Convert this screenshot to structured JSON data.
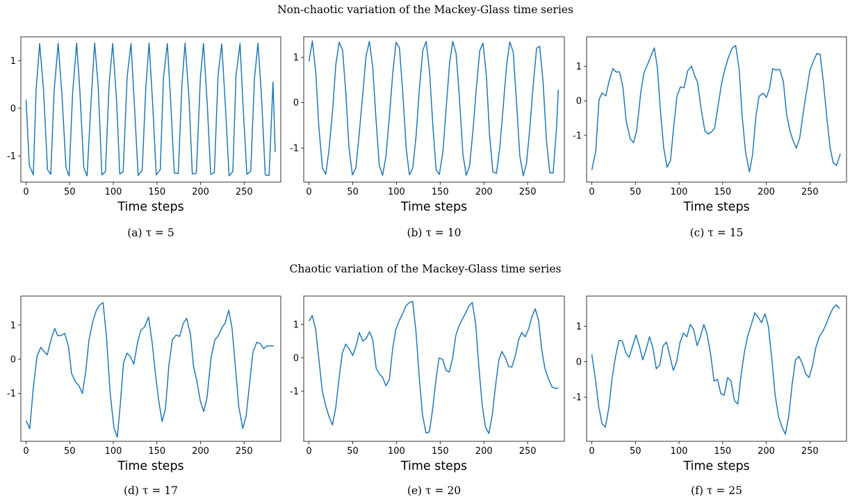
{
  "rows": [
    {
      "title": "Non-chaotic variation of the Mackey-Glass time series"
    },
    {
      "title": "Chaotic variation of the Mackey-Glass time series"
    }
  ],
  "line_color": "#1f77b4",
  "chart_data": [
    {
      "type": "line",
      "caption": "(a) τ = 5",
      "xlabel": "Time steps",
      "ylabel": "",
      "xlim": [
        -6,
        292
      ],
      "ylim": [
        -1.55,
        1.5
      ],
      "xticks": [
        0,
        50,
        100,
        150,
        200,
        250
      ],
      "yticks": [
        -1,
        0,
        1
      ],
      "ytick_labels": [
        "-1",
        "0",
        "1"
      ],
      "x": [
        0,
        3.7,
        8.3,
        11.5,
        15.6,
        20,
        24.6,
        28.3,
        32.2,
        36.8,
        41,
        45.8,
        49.3,
        53.4,
        58,
        61.6,
        66.2,
        69.9,
        74.5,
        78.6,
        82.7,
        86.9,
        91,
        95.2,
        99.3,
        103.9,
        107.4,
        111.3,
        115.9,
        120.3,
        124.2,
        128.5,
        133.1,
        137.3,
        141,
        145.1,
        149.2,
        153.8,
        157.5,
        162,
        165.8,
        169.9,
        174.5,
        178.6,
        182.3,
        186.9,
        190.6,
        195.2,
        199.8,
        203.4,
        207.6,
        211.7,
        215.8,
        220.1,
        224.3,
        228.6,
        232.7,
        237,
        240.7,
        245.3,
        248.5,
        253.1,
        257.6,
        261.8,
        265.9,
        270,
        274.2,
        278.6,
        283.1,
        285.6
      ],
      "y": [
        0.18,
        -1.2,
        -1.4,
        0.4,
        1.36,
        0.39,
        -1.29,
        -1.39,
        0.37,
        1.36,
        0.31,
        -1.25,
        -1.42,
        0.32,
        1.37,
        0.39,
        -1.25,
        -1.42,
        0.14,
        1.37,
        0.46,
        -1.4,
        -1.33,
        0.51,
        1.36,
        0.12,
        -1.38,
        -1.33,
        0.67,
        1.36,
        0.06,
        -1.41,
        -1.3,
        0.43,
        1.37,
        0.11,
        -1.4,
        -1.29,
        0.64,
        1.36,
        0.13,
        -1.36,
        -1.37,
        0.48,
        1.37,
        0.17,
        -1.38,
        -1.36,
        0.63,
        1.36,
        0.11,
        -1.39,
        -1.35,
        0.7,
        1.35,
        0.03,
        -1.42,
        -1.33,
        0.69,
        1.36,
        0.14,
        -1.39,
        -1.32,
        0.62,
        1.37,
        0.21,
        -1.4,
        -1.41,
        0.55,
        -0.92
      ]
    },
    {
      "type": "line",
      "caption": "(b) τ = 10",
      "xlabel": "Time steps",
      "ylabel": "",
      "xlim": [
        -6,
        292
      ],
      "ylim": [
        -1.75,
        1.45
      ],
      "xticks": [
        0,
        50,
        100,
        150,
        200,
        250
      ],
      "yticks": [
        -1,
        0,
        1
      ],
      "ytick_labels": [
        "-1",
        "0",
        "1"
      ],
      "x": [
        0,
        3.9,
        7.8,
        11.3,
        15.5,
        19.2,
        22.9,
        27.1,
        30.6,
        34.5,
        38.4,
        42.2,
        45.8,
        49.7,
        53.6,
        57.3,
        61.4,
        65.3,
        69.1,
        72.8,
        76.6,
        80.4,
        84.2,
        88.1,
        92,
        95.8,
        99.5,
        103.4,
        107.3,
        111.2,
        114.9,
        118.7,
        122.5,
        126.4,
        130.1,
        134,
        137.9,
        141.7,
        145.4,
        149.1,
        153.2,
        157,
        160.7,
        164.4,
        168.3,
        172.1,
        176,
        179.8,
        183.6,
        187.5,
        191.3,
        195.2,
        199,
        202.9,
        206.5,
        210.3,
        214.4,
        218.2,
        221.9,
        226,
        229.6,
        233.6,
        237.3,
        241.1,
        245,
        248.7,
        252.4,
        256.3,
        260.3,
        263.9,
        267.7,
        271.6,
        275.4,
        279.2,
        283.1,
        285.2
      ],
      "y": [
        0.91,
        1.36,
        0.66,
        -0.55,
        -1.45,
        -1.58,
        -1.03,
        -0.15,
        0.83,
        1.33,
        1.16,
        0.19,
        -1.01,
        -1.59,
        -1.44,
        -0.71,
        0.16,
        1.03,
        1.35,
        0.8,
        -0.34,
        -1.38,
        -1.6,
        -1.17,
        -0.3,
        0.65,
        1.33,
        1.21,
        0.2,
        -1.02,
        -1.59,
        -1.44,
        -0.73,
        0.34,
        1.15,
        1.35,
        0.67,
        -0.53,
        -1.48,
        -1.58,
        -1.08,
        -0.1,
        0.86,
        1.35,
        1.08,
        0.09,
        -1.13,
        -1.6,
        -1.4,
        -0.62,
        0.31,
        1.14,
        1.31,
        0.58,
        -0.72,
        -1.52,
        -1.56,
        -0.99,
        -0.13,
        0.82,
        1.34,
        1.11,
        0.01,
        -1.17,
        -1.61,
        -1.34,
        -0.59,
        0.37,
        1.2,
        1.24,
        0.45,
        -0.84,
        -1.55,
        -1.55,
        -0.54,
        0.29
      ]
    },
    {
      "type": "line",
      "caption": "(c) τ = 15",
      "xlabel": "Time steps",
      "ylabel": "",
      "xlim": [
        -6,
        292
      ],
      "ylim": [
        -2.35,
        1.85
      ],
      "xticks": [
        0,
        50,
        100,
        150,
        200,
        250
      ],
      "yticks": [
        -1,
        0,
        1
      ],
      "ytick_labels": [
        "-1",
        "0",
        "1"
      ],
      "x": [
        0,
        4.4,
        8.3,
        11.7,
        16.1,
        20,
        24.2,
        28.1,
        31.8,
        35.7,
        39.3,
        43.9,
        47.8,
        51.4,
        56.2,
        59.8,
        63.9,
        67.8,
        71.7,
        75.1,
        78.5,
        82.4,
        86.3,
        90.2,
        93.8,
        97.7,
        101.6,
        105.7,
        109.9,
        114.2,
        117.9,
        121.3,
        125.2,
        129.6,
        133.3,
        137.2,
        140.8,
        144.7,
        148.9,
        152.5,
        156.4,
        160.8,
        164.9,
        168.8,
        172.5,
        176.4,
        180.7,
        184.2,
        188.1,
        191.8,
        196.4,
        200.1,
        203.7,
        207.3,
        211,
        215.4,
        219.6,
        223.2,
        227.1,
        230.5,
        234.4,
        238.3,
        242.2,
        245.6,
        250,
        253.4,
        258,
        261.7,
        265.6,
        269.5,
        273.2,
        276.6,
        280.5,
        284.9
      ],
      "y": [
        -2.0,
        -1.47,
        0.03,
        0.23,
        0.14,
        0.59,
        0.93,
        0.83,
        0.84,
        0.39,
        -0.57,
        -1.09,
        -1.21,
        -0.87,
        0.26,
        0.81,
        1.05,
        1.3,
        1.53,
        0.96,
        -0.24,
        -1.35,
        -1.92,
        -1.73,
        -0.76,
        0.14,
        0.4,
        0.38,
        0.87,
        1.0,
        0.73,
        0.52,
        -0.23,
        -0.87,
        -0.96,
        -0.9,
        -0.79,
        -0.15,
        0.52,
        0.91,
        1.24,
        1.52,
        1.6,
        0.94,
        -0.48,
        -1.51,
        -2.06,
        -1.57,
        -0.46,
        0.13,
        0.22,
        0.1,
        0.36,
        0.93,
        0.89,
        0.91,
        0.56,
        -0.38,
        -0.86,
        -1.13,
        -1.37,
        -1.08,
        -0.37,
        0.18,
        0.88,
        1.11,
        1.37,
        1.34,
        0.51,
        -0.51,
        -1.36,
        -1.78,
        -1.87,
        -1.53
      ]
    },
    {
      "type": "line",
      "caption": "(d) τ = 17",
      "xlabel": "Time steps",
      "ylabel": "",
      "xlim": [
        -6,
        292
      ],
      "ylim": [
        -2.4,
        1.85
      ],
      "xticks": [
        0,
        50,
        100,
        150,
        200,
        250
      ],
      "yticks": [
        -1,
        0,
        1
      ],
      "ytick_labels": [
        "-1",
        "0",
        "1"
      ],
      "x": [
        0,
        4.2,
        8.1,
        12.5,
        16.9,
        20.6,
        24.3,
        28.7,
        32.8,
        36.3,
        40.4,
        44.3,
        48.5,
        52.2,
        56.6,
        60.7,
        64.6,
        68.3,
        72.2,
        76.6,
        80.5,
        84.1,
        88.3,
        92.2,
        96.3,
        100.7,
        104.6,
        108.3,
        111.8,
        115.7,
        119.6,
        123.5,
        128.1,
        131.8,
        135.9,
        140.4,
        144.5,
        148.1,
        151.8,
        155.9,
        159.8,
        163.7,
        167.8,
        172,
        176.1,
        180.2,
        184.1,
        188.5,
        191.9,
        195.8,
        199.7,
        203.6,
        207.5,
        212.1,
        216.5,
        220.1,
        224.1,
        228.4,
        232.3,
        236.2,
        240.3,
        243.8,
        248.4,
        252.3,
        256,
        260.1,
        264.5,
        268.6,
        272.3,
        276.2,
        279.6,
        284
      ],
      "y": [
        -1.79,
        -2.03,
        -0.88,
        0.08,
        0.35,
        0.23,
        0.13,
        0.58,
        0.9,
        0.69,
        0.7,
        0.76,
        0.39,
        -0.42,
        -0.66,
        -0.78,
        -1.0,
        -0.38,
        0.58,
        1.12,
        1.43,
        1.58,
        1.66,
        0.66,
        -0.97,
        -2.0,
        -2.28,
        -1.22,
        -0.09,
        0.18,
        0.08,
        -0.14,
        0.53,
        0.86,
        0.95,
        1.24,
        0.49,
        -0.38,
        -1.16,
        -1.82,
        -1.44,
        -0.18,
        0.58,
        0.71,
        0.67,
        1.05,
        1.2,
        0.72,
        -0.2,
        -0.64,
        -1.22,
        -1.53,
        -1.12,
        0.05,
        0.57,
        0.68,
        0.9,
        1.07,
        1.44,
        0.89,
        -0.32,
        -1.38,
        -2.02,
        -1.66,
        -0.76,
        0.21,
        0.5,
        0.46,
        0.31,
        0.39,
        0.39,
        0.39
      ]
    },
    {
      "type": "line",
      "caption": "(e) τ = 20",
      "xlabel": "Time steps",
      "ylabel": "",
      "xlim": [
        -6,
        292
      ],
      "ylim": [
        -2.5,
        1.85
      ],
      "xticks": [
        0,
        50,
        100,
        150,
        200,
        250
      ],
      "yticks": [
        -1,
        0,
        1
      ],
      "ytick_labels": [
        "-1",
        "0",
        "1"
      ],
      "x": [
        0,
        3.8,
        7.7,
        11.5,
        15.2,
        19.2,
        23.1,
        26.8,
        30.6,
        34.5,
        38.1,
        42,
        45.9,
        50,
        53.7,
        57.6,
        61.5,
        65.4,
        69.3,
        72.9,
        76.8,
        80.4,
        84.3,
        88.1,
        92,
        95.7,
        99.4,
        103.5,
        107,
        110.9,
        114.6,
        118.5,
        122.4,
        126.2,
        129.9,
        133.8,
        137.7,
        141.4,
        145.3,
        148.7,
        152.9,
        156.7,
        160.4,
        164.3,
        167.8,
        171.6,
        175.3,
        179.1,
        183,
        186.7,
        190.6,
        194.4,
        198.1,
        201.8,
        205.7,
        209.4,
        213.2,
        217.1,
        220.6,
        224.6,
        228.3,
        232,
        236.2,
        239.6,
        243.3,
        247.2,
        251.1,
        254.8,
        258.7,
        262.5,
        266.2,
        269.9,
        274,
        277.9,
        281.8,
        285
      ],
      "y": [
        1.1,
        1.27,
        0.85,
        -0.08,
        -0.99,
        -1.44,
        -1.77,
        -2.01,
        -1.49,
        -0.58,
        0.14,
        0.41,
        0.27,
        0.07,
        0.34,
        0.76,
        0.5,
        0.58,
        0.78,
        0.54,
        -0.31,
        -0.48,
        -0.59,
        -0.84,
        -0.64,
        0.28,
        0.86,
        1.13,
        1.31,
        1.56,
        1.65,
        1.69,
        0.77,
        -0.63,
        -1.72,
        -2.25,
        -2.22,
        -1.54,
        -0.63,
        0.0,
        -0.05,
        -0.37,
        -0.43,
        0.0,
        0.66,
        0.96,
        1.15,
        1.34,
        1.55,
        1.66,
        1.02,
        -0.31,
        -1.42,
        -2.07,
        -2.27,
        -1.74,
        -0.87,
        -0.07,
        0.19,
        0.0,
        -0.26,
        -0.28,
        0.09,
        0.53,
        0.76,
        0.63,
        0.86,
        1.22,
        1.47,
        1.12,
        0.23,
        -0.33,
        -0.64,
        -0.87,
        -0.92,
        -0.9
      ]
    },
    {
      "type": "line",
      "caption": "(f) τ = 25",
      "xlabel": "Time steps",
      "ylabel": "",
      "xlim": [
        -6,
        292
      ],
      "ylim": [
        -2.25,
        1.85
      ],
      "xticks": [
        0,
        50,
        100,
        150,
        200,
        250
      ],
      "yticks": [
        -1,
        0,
        1
      ],
      "ytick_labels": [
        "-1",
        "0",
        "1"
      ],
      "x": [
        0,
        3.9,
        7.8,
        11.7,
        15.6,
        19.5,
        23.3,
        27.2,
        31.1,
        35,
        38.9,
        42.8,
        46.7,
        50.6,
        54.5,
        58.4,
        62.3,
        66.2,
        70.1,
        73.9,
        77.8,
        81.7,
        85.6,
        89.5,
        93.4,
        97.3,
        101.2,
        105.1,
        109,
        112.9,
        116.8,
        120.7,
        124.5,
        128.4,
        132.3,
        136.2,
        140.1,
        144,
        147.9,
        151.8,
        155.7,
        159.6,
        163.5,
        167.4,
        171.3,
        175.1,
        179,
        182.9,
        186.8,
        190.7,
        194.6,
        198.5,
        202.4,
        206.3,
        210.2,
        214.1,
        218,
        221.9,
        225.7,
        229.6,
        233.5,
        237.4,
        241.3,
        245.2,
        249.1,
        253,
        256.9,
        260.8,
        264.7,
        268.6,
        272.5,
        276.3,
        280.2,
        284.1
      ],
      "y": [
        0.2,
        -0.45,
        -1.25,
        -1.75,
        -1.85,
        -1.3,
        -0.45,
        0.15,
        0.6,
        0.58,
        0.25,
        0.12,
        0.43,
        0.75,
        0.45,
        0.05,
        0.35,
        0.7,
        0.38,
        -0.2,
        -0.1,
        0.45,
        0.55,
        0.15,
        -0.25,
        0.0,
        0.55,
        0.8,
        0.7,
        1.05,
        0.9,
        0.45,
        0.7,
        1.05,
        0.75,
        0.2,
        -0.55,
        -0.5,
        -0.9,
        -0.95,
        -0.45,
        -0.55,
        -1.1,
        -1.2,
        -0.35,
        0.3,
        0.75,
        1.05,
        1.38,
        1.25,
        1.1,
        1.35,
        1.0,
        0.1,
        -0.95,
        -1.55,
        -1.85,
        -2.05,
        -1.55,
        -0.65,
        0.05,
        0.15,
        -0.05,
        -0.35,
        -0.45,
        -0.1,
        0.4,
        0.7,
        0.85,
        1.05,
        1.3,
        1.5,
        1.6,
        1.5
      ]
    }
  ]
}
